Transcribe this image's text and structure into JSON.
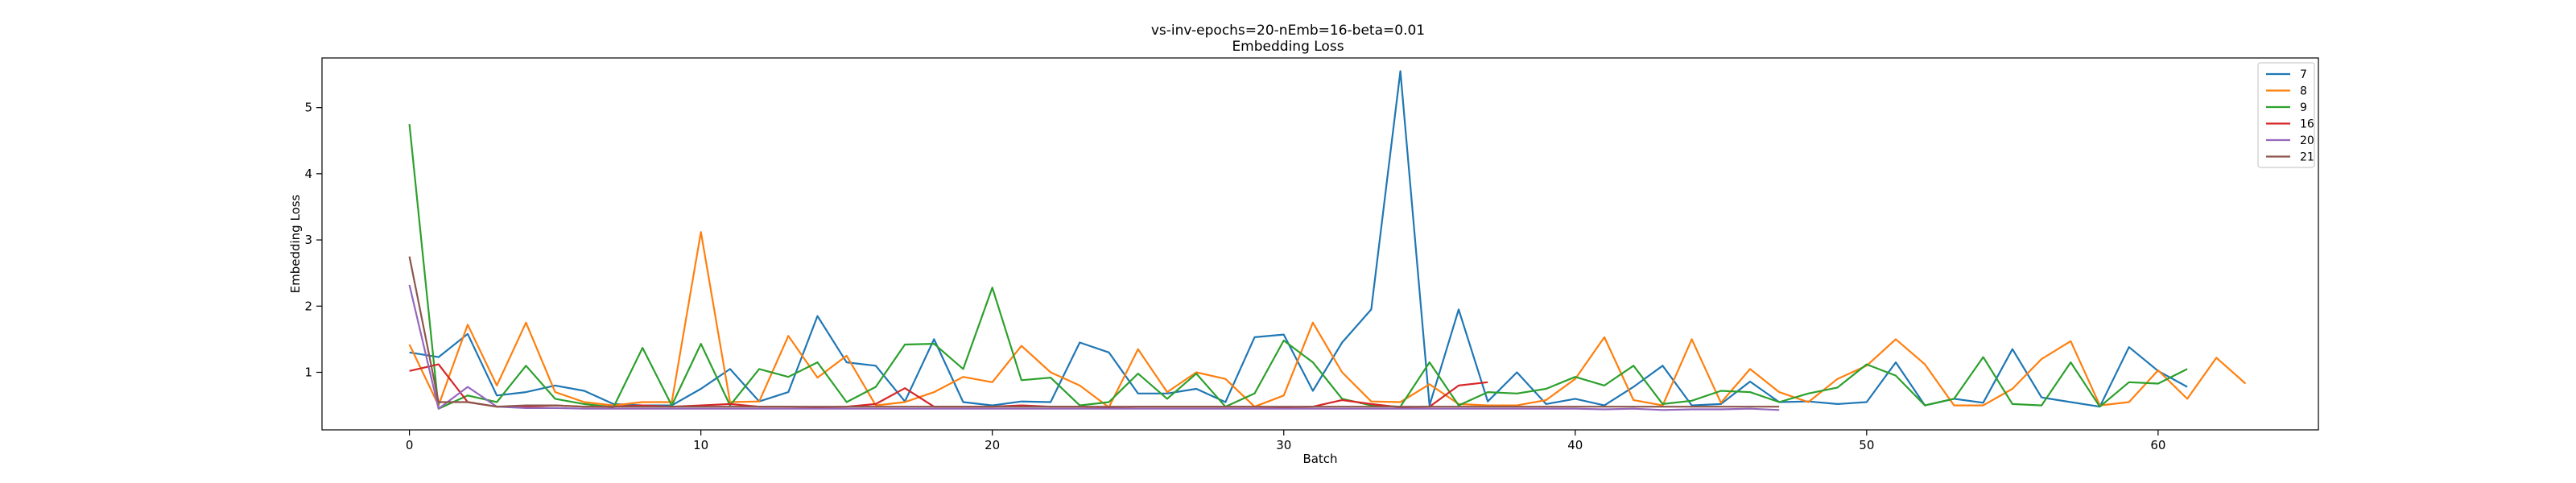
{
  "chart_data": {
    "type": "line",
    "title": "vs-inv-epochs=20-nEmb=16-beta=0.01",
    "subtitle": "Embedding Loss",
    "xlabel": "Batch",
    "ylabel": "Embedding Loss",
    "xlim": [
      -3,
      65.5
    ],
    "ylim": [
      0.13,
      5.75
    ],
    "xticks": [
      0,
      10,
      20,
      30,
      40,
      50,
      60
    ],
    "yticks": [
      1,
      2,
      3,
      4,
      5
    ],
    "grid": false,
    "legend_position": "top-right",
    "series": [
      {
        "name": "7",
        "color": "#1f77b4",
        "values": [
          1.3,
          1.23,
          1.58,
          0.65,
          0.7,
          0.8,
          0.72,
          0.52,
          0.5,
          0.5,
          0.75,
          1.05,
          0.56,
          0.7,
          1.85,
          1.15,
          1.1,
          0.56,
          1.5,
          0.55,
          0.5,
          0.56,
          0.55,
          1.45,
          1.3,
          0.68,
          0.68,
          0.75,
          0.55,
          1.53,
          1.57,
          0.72,
          1.45,
          1.95,
          5.55,
          0.5,
          1.95,
          0.56,
          1.0,
          0.52,
          0.6,
          0.5,
          0.78,
          1.1,
          0.5,
          0.52,
          0.86,
          0.55,
          0.56,
          0.52,
          0.55,
          1.15,
          0.5,
          0.6,
          0.54,
          1.35,
          0.62,
          0.55,
          0.48,
          1.38,
          1.02,
          0.78
        ]
      },
      {
        "name": "8",
        "color": "#ff7f0e",
        "values": [
          1.42,
          0.5,
          1.72,
          0.8,
          1.75,
          0.7,
          0.55,
          0.5,
          0.55,
          0.55,
          3.12,
          0.55,
          0.56,
          1.55,
          0.92,
          1.25,
          0.5,
          0.55,
          0.7,
          0.93,
          0.85,
          1.4,
          1.0,
          0.8,
          0.47,
          1.35,
          0.7,
          1.0,
          0.9,
          0.48,
          0.65,
          1.75,
          1.0,
          0.56,
          0.55,
          0.82,
          0.52,
          0.5,
          0.5,
          0.58,
          0.9,
          1.53,
          0.58,
          0.5,
          1.5,
          0.54,
          1.05,
          0.7,
          0.55,
          0.9,
          1.1,
          1.5,
          1.12,
          0.5,
          0.5,
          0.75,
          1.2,
          1.47,
          0.5,
          0.55,
          1.03,
          0.6,
          1.22,
          0.83
        ]
      },
      {
        "name": "9",
        "color": "#2ca02c",
        "values": [
          4.75,
          0.45,
          0.65,
          0.55,
          1.1,
          0.6,
          0.52,
          0.47,
          1.37,
          0.5,
          1.43,
          0.5,
          1.05,
          0.93,
          1.15,
          0.55,
          0.78,
          1.42,
          1.43,
          1.05,
          2.28,
          0.88,
          0.92,
          0.5,
          0.55,
          0.98,
          0.6,
          0.98,
          0.48,
          0.68,
          1.48,
          1.15,
          0.6,
          0.5,
          0.48,
          1.15,
          0.5,
          0.7,
          0.68,
          0.75,
          0.93,
          0.8,
          1.1,
          0.52,
          0.57,
          0.72,
          0.7,
          0.55,
          0.68,
          0.77,
          1.12,
          0.95,
          0.5,
          0.6,
          1.23,
          0.52,
          0.5,
          1.15,
          0.48,
          0.85,
          0.83,
          1.05
        ]
      },
      {
        "name": "16",
        "color": "#d62728",
        "values": [
          1.02,
          1.12,
          0.55,
          0.48,
          0.48,
          0.5,
          0.48,
          0.48,
          0.5,
          0.48,
          0.5,
          0.52,
          0.48,
          0.48,
          0.47,
          0.48,
          0.52,
          0.76,
          0.48,
          0.48,
          0.48,
          0.5,
          0.48,
          0.48,
          0.47,
          0.48,
          0.48,
          0.48,
          0.48,
          0.48,
          0.47,
          0.48,
          0.58,
          0.52,
          0.47,
          0.48,
          0.8,
          0.85
        ]
      },
      {
        "name": "20",
        "color": "#9467bd",
        "values": [
          2.32,
          0.45,
          0.78,
          0.48,
          0.46,
          0.46,
          0.45,
          0.45,
          0.45,
          0.45,
          0.45,
          0.45,
          0.45,
          0.45,
          0.45,
          0.45,
          0.45,
          0.45,
          0.45,
          0.45,
          0.45,
          0.45,
          0.45,
          0.45,
          0.45,
          0.45,
          0.45,
          0.45,
          0.45,
          0.45,
          0.45,
          0.45,
          0.45,
          0.45,
          0.45,
          0.45,
          0.45,
          0.45,
          0.45,
          0.45,
          0.45,
          0.44,
          0.45,
          0.43,
          0.44,
          0.44,
          0.45,
          0.43
        ]
      },
      {
        "name": "21",
        "color": "#8c564b",
        "values": [
          2.75,
          0.55,
          0.55,
          0.48,
          0.5,
          0.5,
          0.48,
          0.48,
          0.48,
          0.48,
          0.48,
          0.48,
          0.48,
          0.48,
          0.48,
          0.48,
          0.48,
          0.48,
          0.48,
          0.48,
          0.48,
          0.48,
          0.48,
          0.48,
          0.48,
          0.48,
          0.48,
          0.48,
          0.48,
          0.48,
          0.48,
          0.48,
          0.48,
          0.48,
          0.48,
          0.48,
          0.48,
          0.48,
          0.48,
          0.48,
          0.48,
          0.48,
          0.48,
          0.48,
          0.48,
          0.48,
          0.48,
          0.48
        ]
      }
    ]
  }
}
